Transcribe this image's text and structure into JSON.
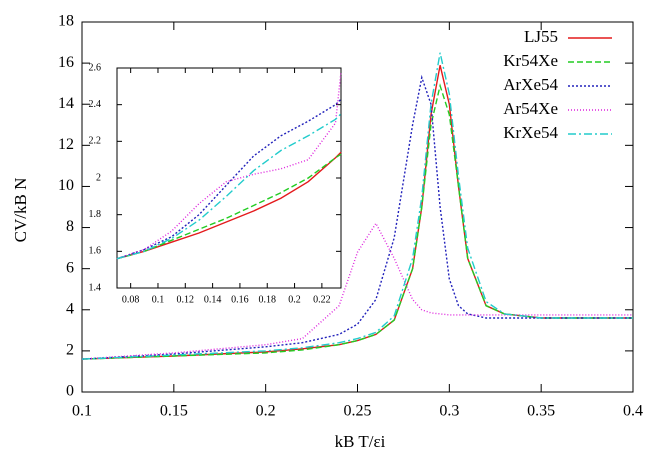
{
  "chart_data": [
    {
      "type": "line",
      "xlabel": "kB T/εi",
      "ylabel": "CV/kB N",
      "x": [
        0.1,
        0.15,
        0.2,
        0.22,
        0.24,
        0.25,
        0.26,
        0.27,
        0.28,
        0.285,
        0.29,
        0.295,
        0.3,
        0.305,
        0.31,
        0.32,
        0.33,
        0.35,
        0.4
      ],
      "xlim": [
        0.1,
        0.4
      ],
      "xticks": [
        0.1,
        0.15,
        0.2,
        0.25,
        0.3,
        0.35,
        0.4
      ],
      "ylim": [
        0,
        18
      ],
      "yticks": [
        0,
        2,
        4,
        6,
        8,
        10,
        12,
        14,
        16,
        18
      ],
      "grid": false,
      "legend": "top-right",
      "series": [
        {
          "name": "LJ55",
          "color": "#e41a1c",
          "dash": "none",
          "values": [
            1.6,
            1.75,
            1.95,
            2.1,
            2.3,
            2.5,
            2.8,
            3.5,
            6,
            9,
            13.5,
            15.9,
            14,
            10,
            6.5,
            4.2,
            3.8,
            3.6,
            3.6
          ]
        },
        {
          "name": "Kr54Xe",
          "color": "#22cc22",
          "dash": "6,3",
          "values": [
            1.6,
            1.75,
            1.9,
            2.05,
            2.3,
            2.5,
            2.8,
            3.5,
            6,
            9,
            13,
            14.9,
            13.5,
            10,
            6.5,
            4.2,
            3.8,
            3.6,
            3.6
          ]
        },
        {
          "name": "ArXe54",
          "color": "#2222bb",
          "dash": "2,2",
          "values": [
            1.6,
            1.85,
            2.2,
            2.4,
            2.8,
            3.3,
            4.5,
            7.5,
            13,
            15.3,
            14,
            9,
            5.5,
            4.2,
            3.8,
            3.6,
            3.6,
            3.6,
            3.6
          ]
        },
        {
          "name": "Ar54Xe",
          "color": "#dd22dd",
          "dash": "1,2",
          "values": [
            1.6,
            1.9,
            2.3,
            2.6,
            4.2,
            6.8,
            8.2,
            6.5,
            4.5,
            4.0,
            3.85,
            3.8,
            3.75,
            3.75,
            3.75,
            3.75,
            3.75,
            3.75,
            3.75
          ]
        },
        {
          "name": "KrXe54",
          "color": "#22cccc",
          "dash": "8,3,2,3",
          "values": [
            1.6,
            1.8,
            2.0,
            2.15,
            2.4,
            2.6,
            2.9,
            3.7,
            6.5,
            9.5,
            14,
            16.5,
            14.5,
            10.5,
            7,
            4.4,
            3.8,
            3.6,
            3.6
          ]
        }
      ]
    },
    {
      "type": "line",
      "x": [
        0.07,
        0.09,
        0.11,
        0.13,
        0.15,
        0.17,
        0.19,
        0.21,
        0.23,
        0.234
      ],
      "xlim": [
        0.07,
        0.234
      ],
      "xticks": [
        0.08,
        0.1,
        0.12,
        0.14,
        0.16,
        0.18,
        0.2,
        0.22
      ],
      "ylim": [
        1.4,
        2.6
      ],
      "yticks": [
        1.4,
        1.6,
        1.8,
        2,
        2.2,
        2.4,
        2.6
      ],
      "grid": false,
      "series": [
        {
          "color": "#e41a1c",
          "dash": "none",
          "values": [
            1.56,
            1.6,
            1.65,
            1.7,
            1.76,
            1.82,
            1.89,
            1.98,
            2.11,
            2.14
          ]
        },
        {
          "color": "#22cc22",
          "dash": "6,3",
          "values": [
            1.56,
            1.6,
            1.66,
            1.72,
            1.78,
            1.85,
            1.92,
            2.0,
            2.11,
            2.13
          ]
        },
        {
          "color": "#2222bb",
          "dash": "2,2",
          "values": [
            1.56,
            1.61,
            1.68,
            1.8,
            1.96,
            2.12,
            2.23,
            2.31,
            2.4,
            2.43
          ]
        },
        {
          "color": "#dd22dd",
          "dash": "1,2",
          "values": [
            1.56,
            1.61,
            1.71,
            1.86,
            1.98,
            2.02,
            2.05,
            2.1,
            2.3,
            2.58
          ]
        },
        {
          "color": "#22cccc",
          "dash": "8,3,2,3",
          "values": [
            1.56,
            1.6,
            1.67,
            1.77,
            1.9,
            2.04,
            2.15,
            2.23,
            2.32,
            2.35
          ]
        }
      ]
    }
  ]
}
